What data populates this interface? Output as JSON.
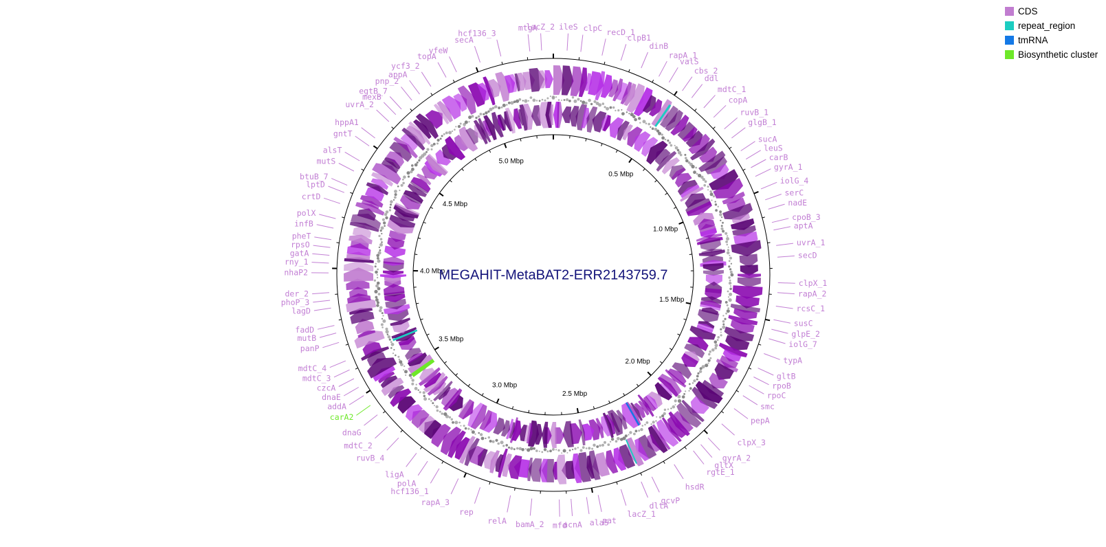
{
  "title": "MEGAHIT-MetaBAT2-ERR2143759.7",
  "colors": {
    "title": "#13137a",
    "cds": "#c17dd0",
    "cds_dark": "#5a0475",
    "cds_mid": "#8a08b0",
    "cds_bright": "#b52ee6",
    "repeat_region": "#1ccdc1",
    "tmrna": "#1479e6",
    "biosynthetic_cluster": "#6ee829",
    "gene_label": "#c27fd4",
    "cluster_label": "#6ee829",
    "gc_ring": "#9c9c9c"
  },
  "legend": [
    {
      "label": "CDS",
      "color": "#c17dd0"
    },
    {
      "label": "repeat_region",
      "color": "#1ccdc1"
    },
    {
      "label": "tmRNA",
      "color": "#1479e6"
    },
    {
      "label": "Biosynthetic cluster",
      "color": "#6ee829"
    }
  ],
  "genome_size_mbp": 5.3,
  "ticks": [
    "0.5 Mbp",
    "1.0 Mbp",
    "1.5 Mbp",
    "2.0 Mbp",
    "2.5 Mbp",
    "3.0 Mbp",
    "3.5 Mbp",
    "4.0 Mbp",
    "4.5 Mbp",
    "5.0 Mbp"
  ],
  "gene_labels": [
    {
      "text": "hcf136_3",
      "angle": -13.5
    },
    {
      "text": "mtgA",
      "angle": -6.0
    },
    {
      "text": "lacZ_2",
      "angle": -3.0
    },
    {
      "text": "ileS",
      "angle": 3.5
    },
    {
      "text": "clpC",
      "angle": 7.0
    },
    {
      "text": "recD_1",
      "angle": 12.5
    },
    {
      "text": "clpB1",
      "angle": 17.5
    },
    {
      "text": "dinB",
      "angle": 23.0
    },
    {
      "text": "rapA_1",
      "angle": 28.0
    },
    {
      "text": "valS",
      "angle": 31.0
    },
    {
      "text": "cbs_2",
      "angle": 35.0
    },
    {
      "text": "ddl",
      "angle": 38.0
    },
    {
      "text": "mdtC_1",
      "angle": 42.0
    },
    {
      "text": "copA",
      "angle": 45.5
    },
    {
      "text": "ruvB_1",
      "angle": 49.5
    },
    {
      "text": "glgB_1",
      "angle": 52.5
    },
    {
      "text": "sucA",
      "angle": 56.5
    },
    {
      "text": "leuS",
      "angle": 59.0
    },
    {
      "text": "carB",
      "angle": 61.5
    },
    {
      "text": "gyrA_1",
      "angle": 64.0
    },
    {
      "text": "iolG_4",
      "angle": 67.5
    },
    {
      "text": "serC",
      "angle": 70.5
    },
    {
      "text": "nadE",
      "angle": 73.0
    },
    {
      "text": "cpoB_3",
      "angle": 76.5
    },
    {
      "text": "aptA",
      "angle": 78.5
    },
    {
      "text": "uvrA_1",
      "angle": 82.5
    },
    {
      "text": "secD",
      "angle": 85.5
    },
    {
      "text": "clpX_1",
      "angle": 92.0
    },
    {
      "text": "rapA_2",
      "angle": 94.5
    },
    {
      "text": "rcsC_1",
      "angle": 98.0
    },
    {
      "text": "susC",
      "angle": 101.5
    },
    {
      "text": "glpE_2",
      "angle": 104.0
    },
    {
      "text": "iolG_7",
      "angle": 106.5
    },
    {
      "text": "typA",
      "angle": 110.5
    },
    {
      "text": "gltB",
      "angle": 114.5
    },
    {
      "text": "rpoB",
      "angle": 117.0
    },
    {
      "text": "rpoC",
      "angle": 119.5
    },
    {
      "text": "smc",
      "angle": 122.5
    },
    {
      "text": "pepA",
      "angle": 126.5
    },
    {
      "text": "clpX_3",
      "angle": 131.5
    },
    {
      "text": "gyrA_2",
      "angle": 136.5
    },
    {
      "text": "gltX",
      "angle": 139.0
    },
    {
      "text": "rgtE_1",
      "angle": 141.5
    },
    {
      "text": "hsdR",
      "angle": 147.5
    },
    {
      "text": "gcvP",
      "angle": 154.0
    },
    {
      "text": "dltA",
      "angle": 157.0
    },
    {
      "text": "lacZ_1",
      "angle": 162.5
    },
    {
      "text": "pat",
      "angle": 168.5
    },
    {
      "text": "alaS",
      "angle": 171.5
    },
    {
      "text": "acnA",
      "angle": 175.5
    },
    {
      "text": "mfd",
      "angle": 178.5
    },
    {
      "text": "bamA_2",
      "angle": 185.5
    },
    {
      "text": "relA",
      "angle": 191.0
    },
    {
      "text": "rep",
      "angle": 199.0
    },
    {
      "text": "rapA_3",
      "angle": 205.0
    },
    {
      "text": "hcf136_1",
      "angle": 210.5
    },
    {
      "text": "polA",
      "angle": 214.0
    },
    {
      "text": "ligA",
      "angle": 217.5
    },
    {
      "text": "ruvB_4",
      "angle": 223.5
    },
    {
      "text": "mdtC_2",
      "angle": 227.5
    },
    {
      "text": "dnaG",
      "angle": 231.5
    },
    {
      "text": "carA2",
      "angle": 234.5,
      "cluster": true
    },
    {
      "text": "addA",
      "angle": 237.5
    },
    {
      "text": "dnaE",
      "angle": 240.0
    },
    {
      "text": "czcA",
      "angle": 242.5
    },
    {
      "text": "mdtC_3",
      "angle": 245.0
    },
    {
      "text": "mdtC_4",
      "angle": 247.5
    },
    {
      "text": "panP",
      "angle": 252.5
    },
    {
      "text": "mutB",
      "angle": 255.0
    },
    {
      "text": "fadD",
      "angle": 257.0
    },
    {
      "text": "lagD",
      "angle": 261.5
    },
    {
      "text": "phoP_3",
      "angle": 263.5
    },
    {
      "text": "der_2",
      "angle": 265.5
    },
    {
      "text": "nhaP2",
      "angle": 270.5
    },
    {
      "text": "rny_1",
      "angle": 273.0
    },
    {
      "text": "gatA",
      "angle": 275.0
    },
    {
      "text": "rpsO",
      "angle": 277.0
    },
    {
      "text": "pheT",
      "angle": 279.0
    },
    {
      "text": "infB",
      "angle": 282.0
    },
    {
      "text": "polX",
      "angle": 284.5
    },
    {
      "text": "crtD",
      "angle": 288.5
    },
    {
      "text": "lptD",
      "angle": 291.5
    },
    {
      "text": "btuB_7",
      "angle": 293.5
    },
    {
      "text": "mutS",
      "angle": 297.5
    },
    {
      "text": "alsT",
      "angle": 300.5
    },
    {
      "text": "gntT",
      "angle": 305.0
    },
    {
      "text": "hppA1",
      "angle": 307.5
    },
    {
      "text": "uvrA_2",
      "angle": 313.0
    },
    {
      "text": "mexB",
      "angle": 315.5
    },
    {
      "text": "egtB_7",
      "angle": 317.5
    },
    {
      "text": "pnp_2",
      "angle": 321.0
    },
    {
      "text": "appA",
      "angle": 323.5
    },
    {
      "text": "ycf3_2",
      "angle": 327.0
    },
    {
      "text": "topA",
      "angle": 331.5
    },
    {
      "text": "yfeW",
      "angle": 334.5
    },
    {
      "text": "secA",
      "angle": 341.0
    }
  ]
}
